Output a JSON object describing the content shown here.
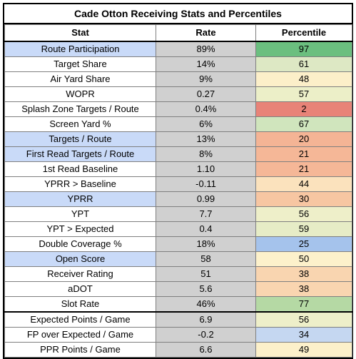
{
  "title": "Cade Otton Receiving Stats and Percentiles",
  "headers": {
    "stat": "Stat",
    "rate": "Rate",
    "percentile": "Percentile"
  },
  "colors": {
    "highlight_stat": "#c9daf8",
    "rate_bg": "#d0d0d0"
  },
  "rows": [
    {
      "stat": "Route Participation",
      "rate": "89%",
      "percentile": "97",
      "stat_highlight": true,
      "pct_color": "#6bbf7f",
      "sep": false
    },
    {
      "stat": "Target Share",
      "rate": "14%",
      "percentile": "61",
      "stat_highlight": false,
      "pct_color": "#dde8c4",
      "sep": false
    },
    {
      "stat": "Air Yard Share",
      "rate": "9%",
      "percentile": "48",
      "stat_highlight": false,
      "pct_color": "#fcefc9",
      "sep": false
    },
    {
      "stat": "WOPR",
      "rate": "0.27",
      "percentile": "57",
      "stat_highlight": false,
      "pct_color": "#ecefc8",
      "sep": false
    },
    {
      "stat": "Splash Zone Targets / Route",
      "rate": "0.4%",
      "percentile": "2",
      "stat_highlight": false,
      "pct_color": "#e88378",
      "sep": false
    },
    {
      "stat": "Screen Yard %",
      "rate": "6%",
      "percentile": "67",
      "stat_highlight": false,
      "pct_color": "#d0e5bd",
      "sep": false
    },
    {
      "stat": "Targets / Route",
      "rate": "13%",
      "percentile": "20",
      "stat_highlight": true,
      "pct_color": "#f4b495",
      "sep": false
    },
    {
      "stat": "First Read Targets / Route",
      "rate": "8%",
      "percentile": "21",
      "stat_highlight": true,
      "pct_color": "#f5b797",
      "sep": false
    },
    {
      "stat": "1st Read Baseline",
      "rate": "1.10",
      "percentile": "21",
      "stat_highlight": false,
      "pct_color": "#f5b797",
      "sep": false
    },
    {
      "stat": "YPRR > Baseline",
      "rate": "-0.11",
      "percentile": "44",
      "stat_highlight": false,
      "pct_color": "#fbe2bd",
      "sep": false
    },
    {
      "stat": "YPRR",
      "rate": "0.99",
      "percentile": "30",
      "stat_highlight": true,
      "pct_color": "#f7c6a2",
      "sep": false
    },
    {
      "stat": "YPT",
      "rate": "7.7",
      "percentile": "56",
      "stat_highlight": false,
      "pct_color": "#eeefc9",
      "sep": false
    },
    {
      "stat": "YPT > Expected",
      "rate": "0.4",
      "percentile": "59",
      "stat_highlight": false,
      "pct_color": "#e6ecc6",
      "sep": false
    },
    {
      "stat": "Double Coverage %",
      "rate": "18%",
      "percentile": "25",
      "stat_highlight": false,
      "pct_color": "#a5c3ec",
      "sep": false
    },
    {
      "stat": "Open Score",
      "rate": "58",
      "percentile": "50",
      "stat_highlight": true,
      "pct_color": "#fdf1cb",
      "sep": false
    },
    {
      "stat": "Receiver Rating",
      "rate": "51",
      "percentile": "38",
      "stat_highlight": false,
      "pct_color": "#f9d5b0",
      "sep": false
    },
    {
      "stat": "aDOT",
      "rate": "5.6",
      "percentile": "38",
      "stat_highlight": false,
      "pct_color": "#f9d5b0",
      "sep": false
    },
    {
      "stat": "Slot Rate",
      "rate": "46%",
      "percentile": "77",
      "stat_highlight": false,
      "pct_color": "#b5d9a4",
      "sep": false
    },
    {
      "stat": "Expected Points / Game",
      "rate": "6.9",
      "percentile": "56",
      "stat_highlight": false,
      "pct_color": "#eeefc9",
      "sep": true
    },
    {
      "stat": "FP over Expected / Game",
      "rate": "-0.2",
      "percentile": "34",
      "stat_highlight": false,
      "pct_color": "#c5d7f1",
      "sep": false
    },
    {
      "stat": "PPR Points / Game",
      "rate": "6.6",
      "percentile": "49",
      "stat_highlight": false,
      "pct_color": "#fcf0ca",
      "sep": false
    }
  ]
}
